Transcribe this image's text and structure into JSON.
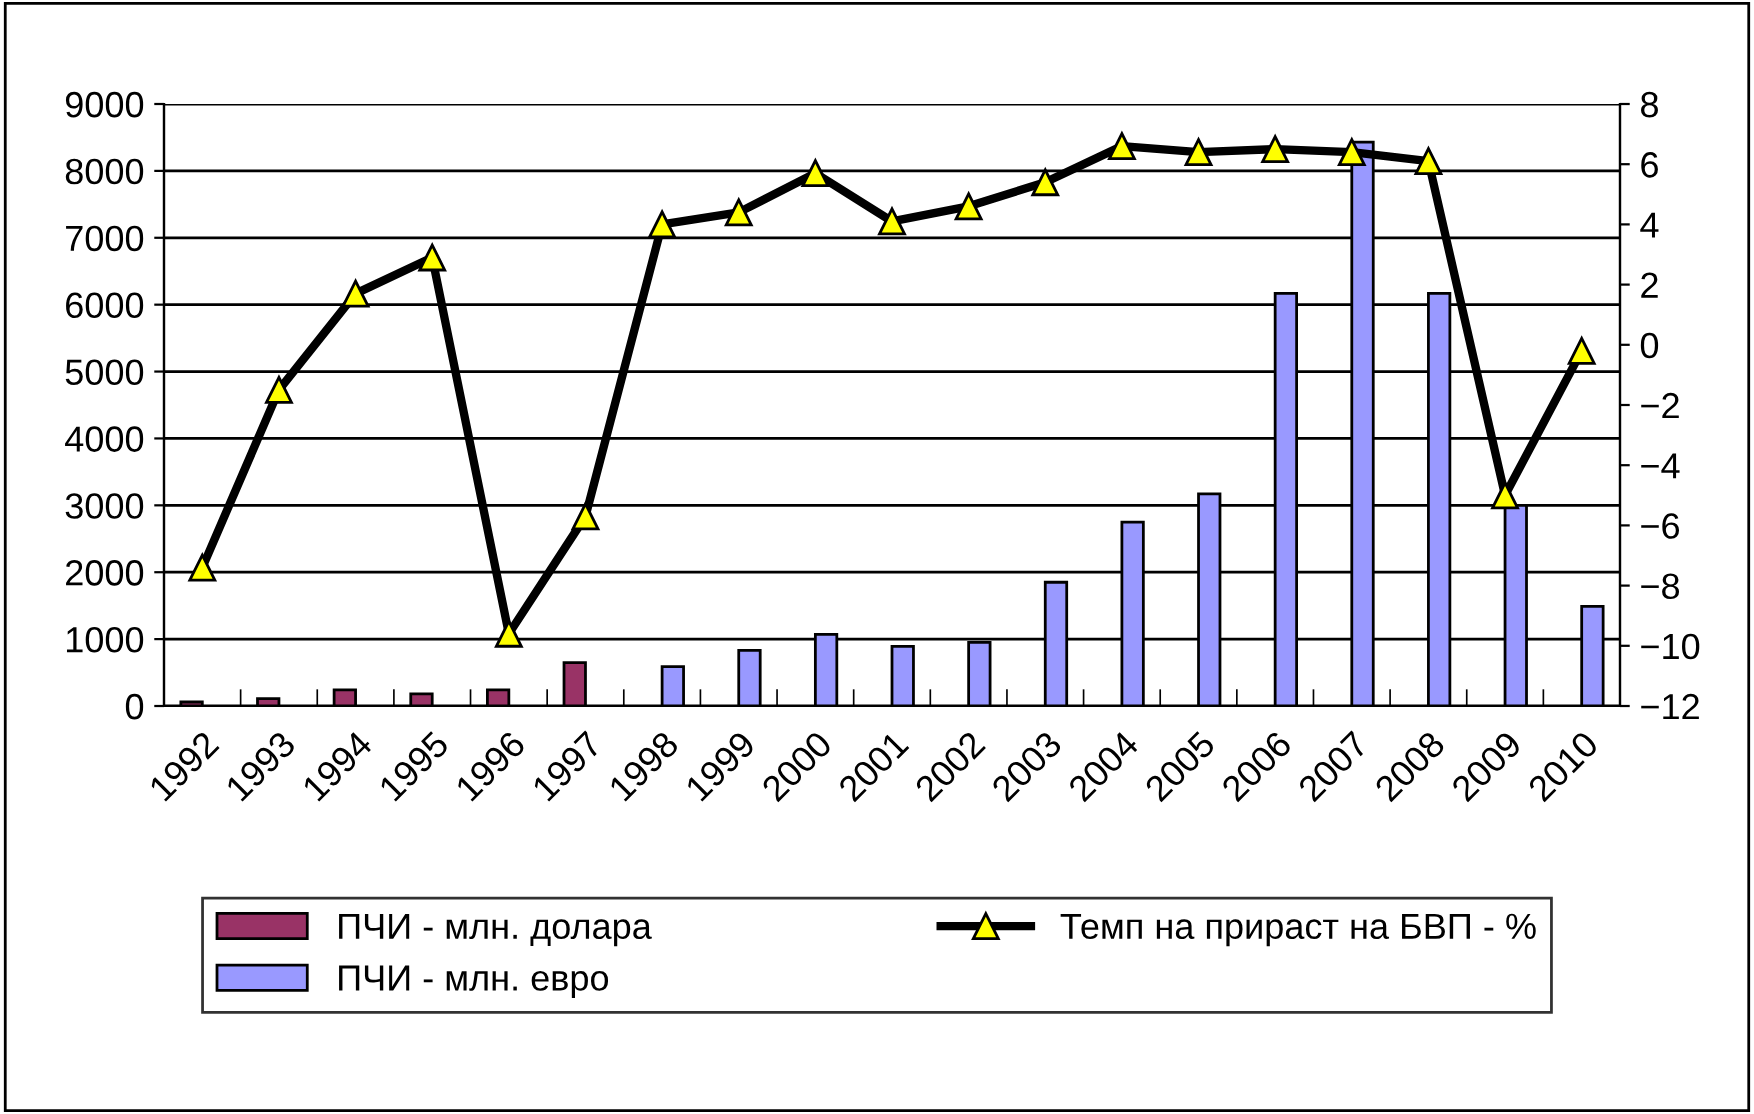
{
  "chart_data": {
    "type": "bar",
    "categories": [
      "1992",
      "1993",
      "1994",
      "1995",
      "1996",
      "1997",
      "1998",
      "1999",
      "2000",
      "2001",
      "2002",
      "2003",
      "2004",
      "2005",
      "2006",
      "2007",
      "2008",
      "2009",
      "2010"
    ],
    "series": [
      {
        "name": "ПЧИ - млн. долара",
        "color": "#993366",
        "values": [
          60,
          110,
          240,
          180,
          240,
          650,
          null,
          null,
          null,
          null,
          null,
          null,
          null,
          null,
          null,
          null,
          null,
          null,
          null
        ]
      },
      {
        "name": "ПЧИ - млн. евро",
        "color": "#9999ff",
        "values": [
          null,
          null,
          null,
          null,
          null,
          null,
          590,
          830,
          1070,
          890,
          950,
          1850,
          2750,
          3170,
          6170,
          8430,
          6170,
          3000,
          1490
        ]
      },
      {
        "name": "Темп на прираст на БВП - %",
        "type": "line",
        "axis": "y2",
        "color": "#000000",
        "marker": "triangle",
        "values": [
          -7.4,
          -1.5,
          1.7,
          2.9,
          -9.6,
          -5.7,
          4.0,
          4.4,
          5.7,
          4.1,
          4.6,
          5.4,
          6.6,
          6.4,
          6.5,
          6.4,
          6.1,
          -5.0,
          -0.2
        ]
      }
    ],
    "ylim": [
      0,
      9000
    ],
    "yticks": [
      0,
      1000,
      2000,
      3000,
      4000,
      5000,
      6000,
      7000,
      8000,
      9000
    ],
    "y2lim": [
      -12,
      8
    ],
    "y2ticks": [
      -12,
      -10,
      -8,
      -6,
      -4,
      -2,
      0,
      2,
      4,
      6,
      8
    ],
    "grid": "y",
    "legend": "bottom"
  }
}
